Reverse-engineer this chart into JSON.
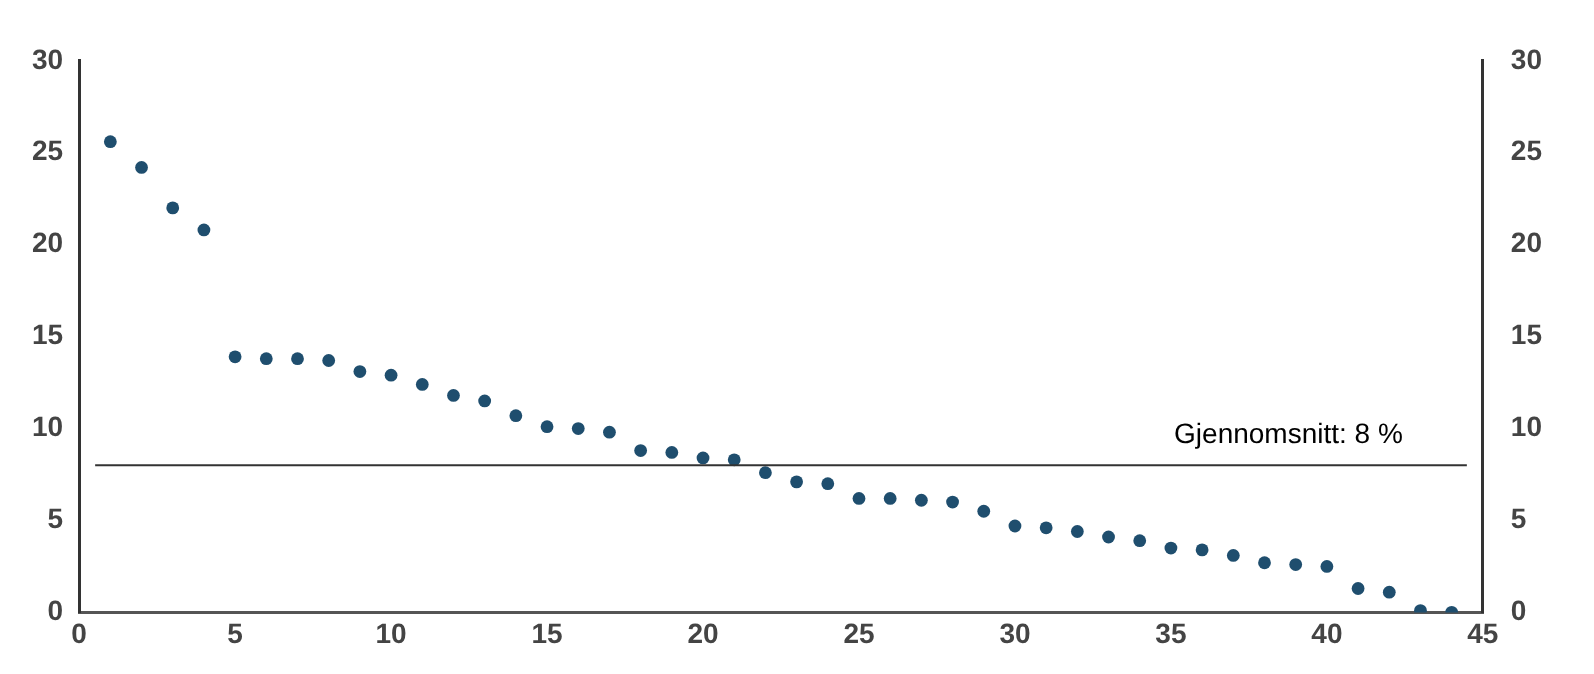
{
  "chart_data": {
    "type": "scatter",
    "x": [
      1,
      2,
      3,
      4,
      5,
      6,
      7,
      8,
      9,
      10,
      11,
      12,
      13,
      14,
      15,
      16,
      17,
      18,
      19,
      20,
      21,
      22,
      23,
      24,
      25,
      26,
      27,
      28,
      29,
      30,
      31,
      32,
      33,
      34,
      35,
      36,
      37,
      38,
      39,
      40,
      41,
      42,
      43,
      44
    ],
    "series": [
      {
        "color": "#1f4e6e",
        "values": [
          25.6,
          24.2,
          22.0,
          20.8,
          13.9,
          13.8,
          13.8,
          13.7,
          13.1,
          12.9,
          12.4,
          11.8,
          11.5,
          10.7,
          10.1,
          10.0,
          9.8,
          8.8,
          8.7,
          8.4,
          8.3,
          7.6,
          7.1,
          7.0,
          6.2,
          6.2,
          6.1,
          6.0,
          5.5,
          4.7,
          4.6,
          4.4,
          4.1,
          3.9,
          3.5,
          3.4,
          3.1,
          2.7,
          2.6,
          2.5,
          1.3,
          1.1,
          0.1,
          0.0
        ]
      }
    ],
    "xlim": [
      0,
      45
    ],
    "xticks": [
      0,
      5,
      10,
      15,
      20,
      25,
      30,
      35,
      40,
      45
    ],
    "ylim": [
      0,
      30
    ],
    "yticks": [
      0,
      5,
      10,
      15,
      20,
      25,
      30
    ],
    "y2lim": [
      0,
      30
    ],
    "y2ticks": [
      0,
      5,
      10,
      15,
      20,
      25,
      30
    ],
    "ref_lines": [
      {
        "axis": "y",
        "value": 8,
        "label": "Gjennomsnitt: 8 %",
        "color": "#333333"
      }
    ],
    "marker": "circle",
    "grid": false,
    "legend": false
  }
}
